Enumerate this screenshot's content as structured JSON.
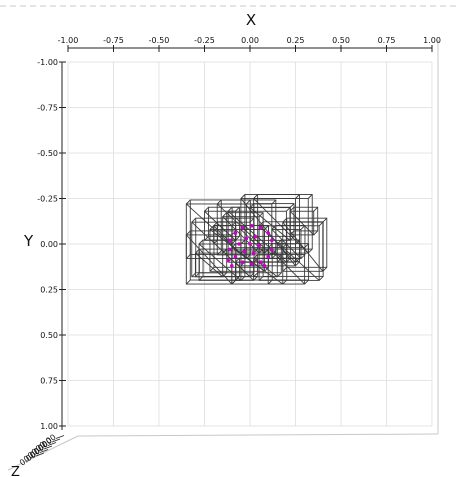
{
  "chart_data": {
    "type": "3d-wireframe",
    "view": "top-down",
    "x_axis": {
      "label": "X",
      "ticks": [
        "-1.00",
        "-0.75",
        "-0.50",
        "-0.25",
        "0.00",
        "0.25",
        "0.50",
        "0.75",
        "1.00"
      ],
      "range": [
        -1,
        1
      ]
    },
    "y_axis": {
      "label": "Y",
      "ticks": [
        "-1.00",
        "-0.75",
        "-0.50",
        "-0.25",
        "0.00",
        "0.25",
        "0.50",
        "0.75",
        "1.00"
      ],
      "range": [
        -1,
        1
      ],
      "inverted": true
    },
    "z_axis": {
      "label": "Z",
      "ticks": [
        "0.00",
        "0.00",
        "0.00",
        "0.00",
        "0.00",
        "0.00"
      ]
    },
    "grid": true,
    "colors": {
      "wire": "#3a3a3a",
      "points": "#cc00cc",
      "grid": "#dddddd",
      "pane_edge": "#c8c8c8"
    },
    "boxes": [
      {
        "x0": -0.35,
        "x1": -0.02,
        "y0": -0.22,
        "y1": 0.08
      },
      {
        "x0": -0.32,
        "x1": 0.0,
        "y0": -0.12,
        "y1": 0.18
      },
      {
        "x0": -0.35,
        "x1": -0.1,
        "y0": -0.05,
        "y1": 0.22
      },
      {
        "x0": -0.18,
        "x1": 0.12,
        "y0": -0.22,
        "y1": 0.06
      },
      {
        "x0": -0.22,
        "x1": 0.08,
        "y0": -0.08,
        "y1": 0.15
      },
      {
        "x0": -0.12,
        "x1": 0.2,
        "y0": -0.18,
        "y1": 0.1
      },
      {
        "x0": -0.05,
        "x1": 0.25,
        "y0": -0.25,
        "y1": 0.12
      },
      {
        "x0": 0.02,
        "x1": 0.32,
        "y0": -0.25,
        "y1": 0.05
      },
      {
        "x0": 0.05,
        "x1": 0.38,
        "y0": -0.1,
        "y1": 0.2
      },
      {
        "x0": 0.18,
        "x1": 0.4,
        "y0": -0.12,
        "y1": 0.15
      },
      {
        "x0": -0.28,
        "x1": -0.05,
        "y0": 0.0,
        "y1": 0.2
      },
      {
        "x0": -0.1,
        "x1": 0.18,
        "y0": 0.02,
        "y1": 0.22
      },
      {
        "x0": 0.1,
        "x1": 0.3,
        "y0": 0.02,
        "y1": 0.22
      },
      {
        "x0": -0.15,
        "x1": 0.05,
        "y0": -0.15,
        "y1": 0.05
      },
      {
        "x0": 0.0,
        "x1": 0.22,
        "y0": -0.2,
        "y1": -0.02
      },
      {
        "x0": -0.25,
        "x1": -0.08,
        "y0": -0.18,
        "y1": -0.02
      },
      {
        "x0": 0.12,
        "x1": 0.28,
        "y0": -0.08,
        "y1": 0.08
      },
      {
        "x0": -0.3,
        "x1": -0.15,
        "y0": 0.05,
        "y1": 0.18
      },
      {
        "x0": 0.02,
        "x1": 0.15,
        "y0": 0.08,
        "y1": 0.18
      },
      {
        "x0": -0.05,
        "x1": 0.08,
        "y0": -0.08,
        "y1": 0.05
      },
      {
        "x0": 0.22,
        "x1": 0.35,
        "y0": -0.18,
        "y1": -0.05
      },
      {
        "x0": -0.2,
        "x1": -0.1,
        "y0": -0.1,
        "y1": 0.0
      },
      {
        "x0": 0.15,
        "x1": 0.25,
        "y0": 0.0,
        "y1": 0.1
      },
      {
        "x0": -0.08,
        "x1": 0.02,
        "y0": 0.1,
        "y1": 0.2
      }
    ],
    "points": [
      {
        "x": -0.08,
        "y": -0.06
      },
      {
        "x": -0.04,
        "y": -0.09
      },
      {
        "x": 0.01,
        "y": -0.1
      },
      {
        "x": 0.06,
        "y": -0.09
      },
      {
        "x": 0.1,
        "y": -0.06
      },
      {
        "x": 0.12,
        "y": -0.02
      },
      {
        "x": 0.12,
        "y": 0.03
      },
      {
        "x": 0.1,
        "y": 0.07
      },
      {
        "x": 0.06,
        "y": 0.1
      },
      {
        "x": 0.01,
        "y": 0.11
      },
      {
        "x": -0.04,
        "y": 0.1
      },
      {
        "x": -0.08,
        "y": 0.07
      },
      {
        "x": -0.11,
        "y": 0.03
      },
      {
        "x": -0.11,
        "y": -0.02
      },
      {
        "x": -0.02,
        "y": -0.03
      },
      {
        "x": 0.03,
        "y": -0.04
      },
      {
        "x": 0.05,
        "y": 0.01
      },
      {
        "x": 0.02,
        "y": 0.05
      },
      {
        "x": -0.03,
        "y": 0.04
      },
      {
        "x": -0.06,
        "y": 0.0
      },
      {
        "x": 0.0,
        "y": 0.0
      },
      {
        "x": -0.12,
        "y": 0.09
      },
      {
        "x": -0.1,
        "y": 0.12
      },
      {
        "x": 0.08,
        "y": 0.12
      }
    ]
  }
}
